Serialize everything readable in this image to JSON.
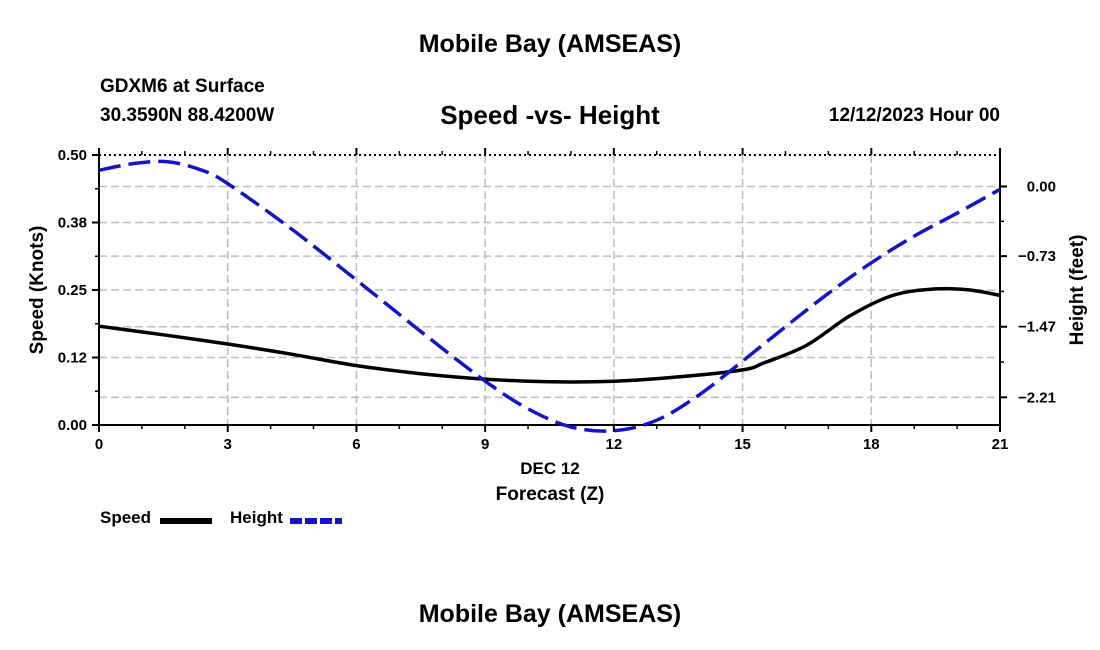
{
  "header": {
    "title": "Mobile Bay (AMSEAS)",
    "station": "GDXM6 at Surface",
    "coords": "30.3590N  88.4200W",
    "date": "12/12/2023 Hour 00"
  },
  "footer": {
    "title": "Mobile Bay (AMSEAS)"
  },
  "colors": {
    "speed": "#000000",
    "height": "#1414c8",
    "grid": "#bdbdbd"
  },
  "chart_data": {
    "type": "line",
    "title": "Speed -vs- Height",
    "xlabel": "Forecast (Z)",
    "xsublabel": "DEC 12",
    "ylabel": "Speed (Knots)",
    "y2label": "Height (feet)",
    "xlim": [
      0,
      21
    ],
    "ylim": [
      0,
      0.5
    ],
    "y2lim": [
      -2.5,
      0.33
    ],
    "xticks": [
      0,
      3,
      6,
      9,
      12,
      15,
      18,
      21
    ],
    "xtick_labels": [
      "0",
      "3",
      "6",
      "9",
      "12",
      "15",
      "18",
      "21"
    ],
    "yticks": [
      0,
      0.125,
      0.25,
      0.375,
      0.5
    ],
    "ytick_labels": [
      "0.00",
      "0.12",
      "0.25",
      "0.38",
      "0.50"
    ],
    "y2ticks": [
      0,
      -0.73,
      -1.47,
      -2.21
    ],
    "y2tick_labels": [
      "0.00",
      "−0.73",
      "−1.47",
      "−2.21"
    ],
    "grid": true,
    "legend": {
      "position": "bottom-left",
      "entries": [
        "Speed",
        "Height"
      ]
    },
    "series": [
      {
        "name": "Speed",
        "axis": "left",
        "style": "solid",
        "x": [
          0,
          1.5,
          3,
          4.5,
          6,
          7.5,
          9,
          10.5,
          12,
          13.5,
          15,
          15.5,
          16.5,
          17.5,
          18.5,
          19.5,
          20.3,
          21
        ],
        "values": [
          0.183,
          0.167,
          0.15,
          0.131,
          0.11,
          0.095,
          0.085,
          0.08,
          0.081,
          0.089,
          0.102,
          0.115,
          0.148,
          0.202,
          0.24,
          0.252,
          0.25,
          0.24
        ]
      },
      {
        "name": "Height",
        "axis": "right",
        "style": "dashed",
        "x": [
          0,
          0.8,
          1.6,
          2.4,
          3,
          4.5,
          6,
          7.5,
          9,
          10,
          11,
          12,
          13,
          14,
          15,
          16,
          17,
          18,
          19,
          20,
          21
        ],
        "values": [
          0.17,
          0.24,
          0.26,
          0.17,
          0.03,
          -0.45,
          -0.98,
          -1.52,
          -2.04,
          -2.33,
          -2.52,
          -2.56,
          -2.45,
          -2.18,
          -1.83,
          -1.47,
          -1.12,
          -0.8,
          -0.52,
          -0.28,
          -0.03
        ]
      }
    ]
  }
}
